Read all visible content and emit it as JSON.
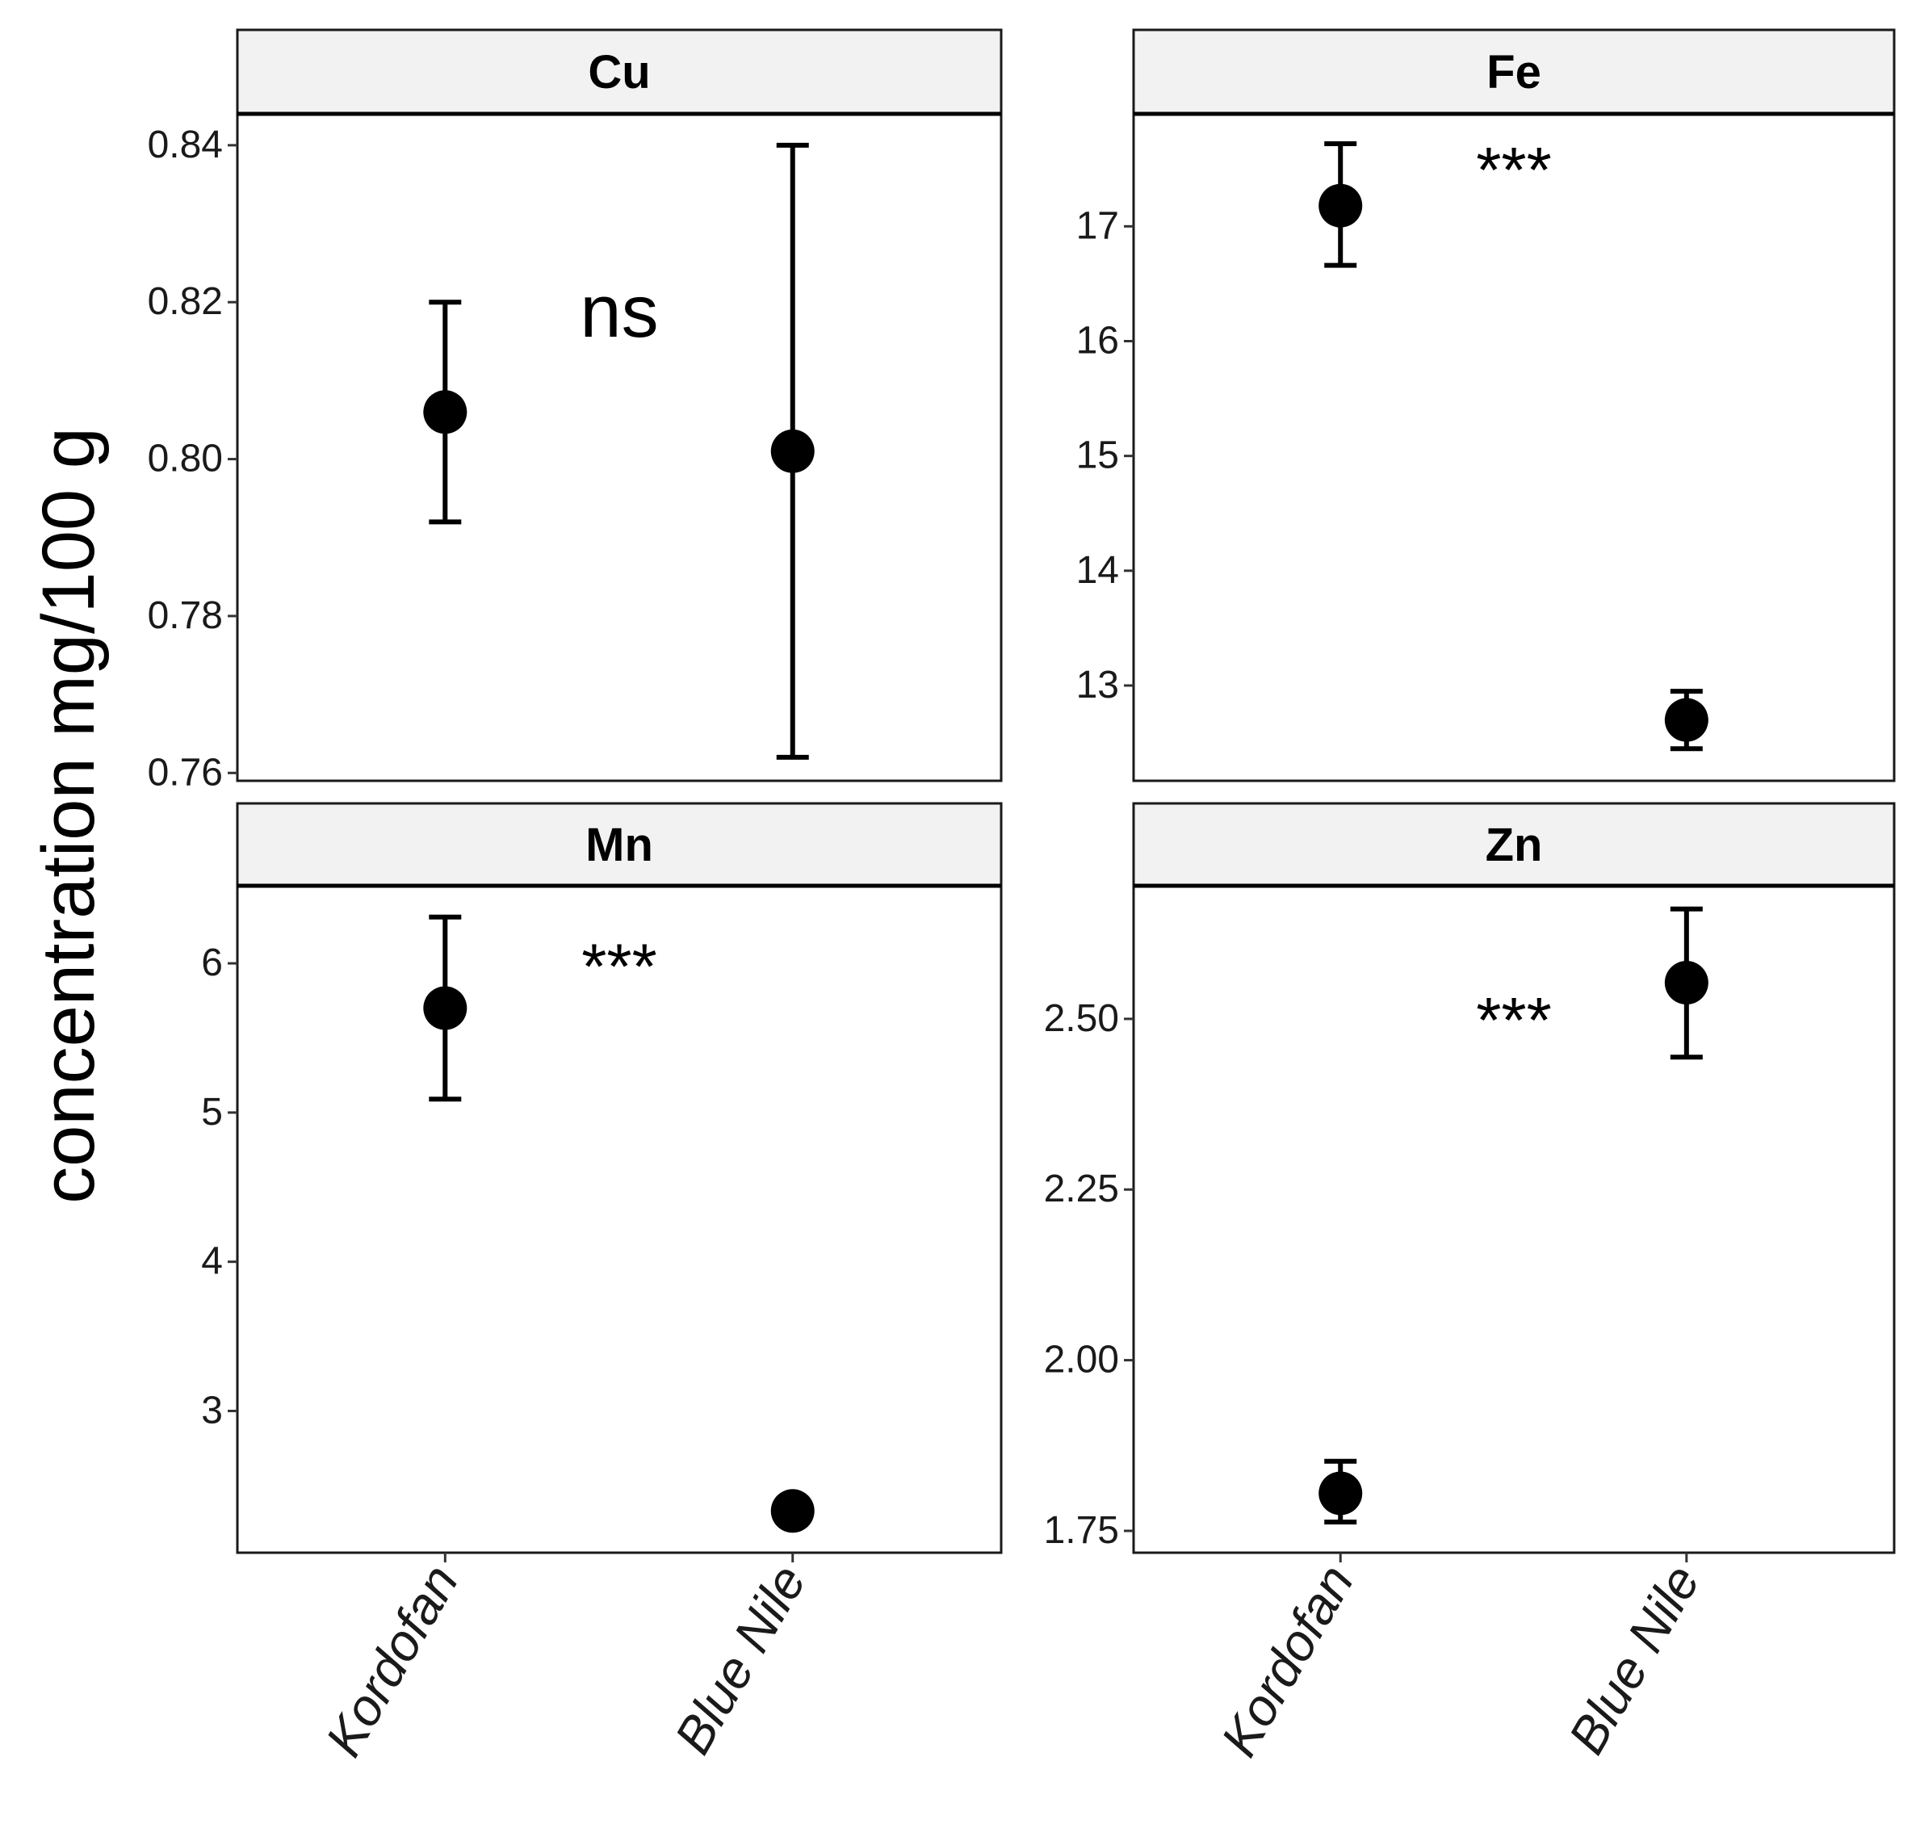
{
  "figure": {
    "ylabel": "concentration mg/100 g",
    "categories": [
      "Kordofan",
      "Blue Nile"
    ]
  },
  "chart_data": [
    {
      "type": "scatter",
      "title": "Cu",
      "xlabel": "",
      "ylabel": "concentration mg/100 g",
      "categories": [
        "Kordofan",
        "Blue Nile"
      ],
      "values": [
        0.806,
        0.801
      ],
      "error_low": [
        0.792,
        0.762
      ],
      "error_high": [
        0.82,
        0.84
      ],
      "ylim": [
        0.759,
        0.844
      ],
      "yticks": [
        0.76,
        0.78,
        0.8,
        0.82,
        0.84
      ],
      "ytick_labels": [
        "0.76",
        "0.78",
        "0.80",
        "0.82",
        "0.84"
      ],
      "annotation": "ns",
      "annotation_y": 0.8185
    },
    {
      "type": "scatter",
      "title": "Fe",
      "xlabel": "",
      "ylabel": "concentration mg/100 g",
      "categories": [
        "Kordofan",
        "Blue Nile"
      ],
      "values": [
        17.18,
        12.7
      ],
      "error_low": [
        16.66,
        12.45
      ],
      "error_high": [
        17.72,
        12.95
      ],
      "ylim": [
        12.17,
        17.98
      ],
      "yticks": [
        13,
        14,
        15,
        16,
        17
      ],
      "ytick_labels": [
        "13",
        "14",
        "15",
        "16",
        "17"
      ],
      "annotation": "***",
      "annotation_y": 17.62
    },
    {
      "type": "scatter",
      "title": "Mn",
      "xlabel": "",
      "ylabel": "concentration mg/100 g",
      "categories": [
        "Kordofan",
        "Blue Nile"
      ],
      "values": [
        5.7,
        2.33
      ],
      "error_low": [
        5.09,
        2.33
      ],
      "error_high": [
        6.31,
        2.33
      ],
      "ylim": [
        2.05,
        6.52
      ],
      "yticks": [
        3,
        4,
        5,
        6
      ],
      "ytick_labels": [
        "3",
        "4",
        "5",
        "6"
      ],
      "annotation": "***",
      "annotation_y": 6.08
    },
    {
      "type": "scatter",
      "title": "Zn",
      "xlabel": "",
      "ylabel": "concentration mg/100 g",
      "categories": [
        "Kordofan",
        "Blue Nile"
      ],
      "values": [
        1.805,
        2.553
      ],
      "error_low": [
        1.763,
        2.444
      ],
      "error_high": [
        1.852,
        2.661
      ],
      "ylim": [
        1.718,
        2.695
      ],
      "yticks": [
        1.75,
        2.0,
        2.25,
        2.5
      ],
      "ytick_labels": [
        "1.75",
        "2.00",
        "2.25",
        "2.50"
      ],
      "annotation": "***",
      "annotation_y": 2.52
    }
  ]
}
